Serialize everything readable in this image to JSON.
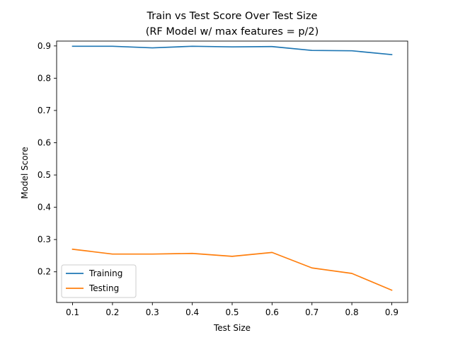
{
  "chart_data": {
    "type": "line",
    "title": "Train vs Test Score Over Test Size",
    "subtitle": "(RF Model w/ max features = p/2)",
    "xlabel": "Test Size",
    "ylabel": "Model Score",
    "x": [
      0.1,
      0.2,
      0.3,
      0.4,
      0.5,
      0.6,
      0.7,
      0.8,
      0.9
    ],
    "xticks": [
      "0.1",
      "0.2",
      "0.3",
      "0.4",
      "0.5",
      "0.6",
      "0.7",
      "0.8",
      "0.9"
    ],
    "yticks": [
      "0.2",
      "0.3",
      "0.4",
      "0.5",
      "0.6",
      "0.7",
      "0.8",
      "0.9"
    ],
    "xlim": [
      0.06,
      0.94
    ],
    "ylim": [
      0.105,
      0.915
    ],
    "grid": false,
    "legend_position": "lower-left",
    "series": [
      {
        "name": "Training",
        "color": "#1f77b4",
        "values": [
          0.899,
          0.899,
          0.894,
          0.899,
          0.897,
          0.898,
          0.886,
          0.885,
          0.873
        ]
      },
      {
        "name": "Testing",
        "color": "#ff7f0e",
        "values": [
          0.27,
          0.255,
          0.255,
          0.257,
          0.248,
          0.26,
          0.212,
          0.195,
          0.143
        ]
      }
    ]
  }
}
